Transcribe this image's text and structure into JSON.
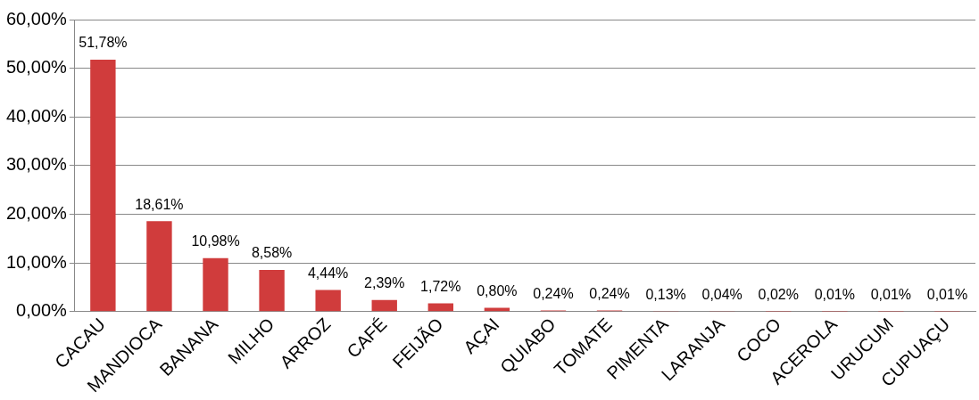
{
  "chart_data": {
    "type": "bar",
    "categories": [
      "CACAU",
      "MANDIOCA",
      "BANANA",
      "MILHO",
      "ARROZ",
      "CAFÉ",
      "FEIJÃO",
      "AÇAI",
      "QUIABO",
      "TOMATE",
      "PIMENTA",
      "LARANJA",
      "COCO",
      "ACEROLA",
      "URUCUM",
      "CUPUAÇU"
    ],
    "values": [
      51.78,
      18.61,
      10.98,
      8.58,
      4.44,
      2.39,
      1.72,
      0.8,
      0.24,
      0.24,
      0.13,
      0.04,
      0.02,
      0.01,
      0.01,
      0.01
    ],
    "value_labels": [
      "51,78%",
      "18,61%",
      "10,98%",
      "8,58%",
      "4,44%",
      "2,39%",
      "1,72%",
      "0,80%",
      "0,24%",
      "0,24%",
      "0,13%",
      "0,04%",
      "0,02%",
      "0,01%",
      "0,01%",
      "0,01%"
    ],
    "color": "#d03c3c",
    "ylim": [
      0,
      60
    ],
    "yticks": [
      {
        "value": 0,
        "label": "0,00%"
      },
      {
        "value": 10,
        "label": "10,00%"
      },
      {
        "value": 20,
        "label": "20,00%"
      },
      {
        "value": 30,
        "label": "30,00%"
      },
      {
        "value": 40,
        "label": "40,00%"
      },
      {
        "value": 50,
        "label": "50,00%"
      },
      {
        "value": 60,
        "label": "60,00%"
      }
    ],
    "grid": "y",
    "legend": false
  }
}
